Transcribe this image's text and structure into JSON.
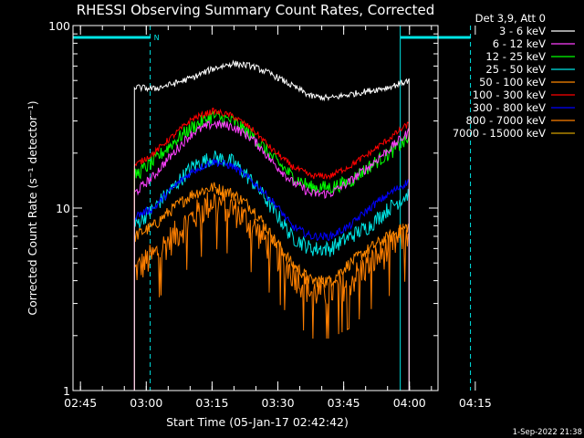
{
  "chart_data": {
    "type": "line",
    "title": "RHESSI Observing Summary Count Rates, Corrected",
    "xlabel": "Start Time (05-Jan-17 02:42:42)",
    "ylabel": "Corrected Count Rate (s⁻¹ detector⁻¹)",
    "ylim": [
      1,
      100
    ],
    "yscale": "log",
    "xlim_minutes": [
      -1.7,
      81.5
    ],
    "xticks": [
      {
        "label": "02:45",
        "min": 0
      },
      {
        "label": "03:00",
        "min": 15
      },
      {
        "label": "03:15",
        "min": 30
      },
      {
        "label": "03:30",
        "min": 45
      },
      {
        "label": "03:45",
        "min": 60
      },
      {
        "label": "04:00",
        "min": 75
      },
      {
        "label": "04:15",
        "min": 90
      }
    ],
    "yticks": [
      {
        "label": "100",
        "value": 100
      },
      {
        "label": "10",
        "value": 10
      },
      {
        "label": "1",
        "value": 1
      }
    ],
    "legend_header": "Det 3,9, Att 0",
    "legend_position": "right",
    "series": [
      {
        "name": "3 - 6 keV",
        "color": "#ffffff",
        "key": [
          0,
          46,
          45,
          48,
          52,
          58,
          62,
          60,
          54,
          47,
          41,
          40,
          42,
          44,
          46,
          50
        ],
        "noise": 0.04
      },
      {
        "name": "6 - 12 keV",
        "color": "#ff40ff",
        "key": [
          0,
          12,
          15,
          20,
          26,
          29,
          28,
          24,
          18,
          14,
          12,
          12,
          14,
          17,
          21,
          26
        ],
        "noise": 0.06
      },
      {
        "name": "12 - 25 keV",
        "color": "#00ff00",
        "key": [
          0,
          15,
          18,
          23,
          28,
          32,
          30,
          25,
          19,
          15,
          13,
          13,
          14,
          17,
          20,
          24
        ],
        "noise": 0.09
      },
      {
        "name": "25 - 50 keV",
        "color": "#00e5e5",
        "key": [
          0,
          8,
          10,
          13,
          17,
          19,
          18,
          14,
          10,
          7,
          6,
          6,
          7,
          8,
          10,
          12
        ],
        "noise": 0.1
      },
      {
        "name": "50 - 100 keV",
        "color": "#ff8800",
        "key": [
          0,
          7,
          8,
          10,
          12,
          13,
          12,
          10,
          7,
          5,
          4,
          4,
          5,
          6,
          7,
          8
        ],
        "noise": 0.08
      },
      {
        "name": "100 - 300 keV",
        "color": "#ff0000",
        "key": [
          0,
          17,
          20,
          25,
          31,
          34,
          32,
          27,
          21,
          17,
          15,
          15,
          17,
          20,
          24,
          29
        ],
        "noise": 0.04
      },
      {
        "name": "300 - 800 keV",
        "color": "#0000ff",
        "key": [
          0,
          9,
          10,
          13,
          16,
          18,
          17,
          14,
          11,
          8,
          7,
          7,
          8,
          10,
          12,
          14
        ],
        "noise": 0.05
      },
      {
        "name": "800 - 7000 keV",
        "color": "#ff7f00",
        "key": [
          0,
          4.5,
          5.5,
          7,
          9,
          11,
          10,
          8,
          6,
          4.5,
          3.5,
          3.5,
          4,
          5,
          6,
          7.5
        ],
        "noise": 0.2
      },
      {
        "name": "7000 - 15000 keV",
        "color": "#d2a000",
        "key": [],
        "noise": 0
      }
    ],
    "data_window_minutes": [
      12.3,
      74.9
    ],
    "night_markers_minutes": [
      15.9,
      88.9
    ],
    "day_markers_minutes": [
      -1.7,
      72.9
    ],
    "flag_bars": [
      {
        "label": "N",
        "from_min": -1.7,
        "to_min": 15.9,
        "color": "#00e5e5"
      },
      {
        "label": "",
        "from_min": 72.9,
        "to_min": 88.9,
        "color": "#00e5e5"
      }
    ]
  },
  "footer": {
    "timestamp": "1-Sep-2022 21:38"
  }
}
